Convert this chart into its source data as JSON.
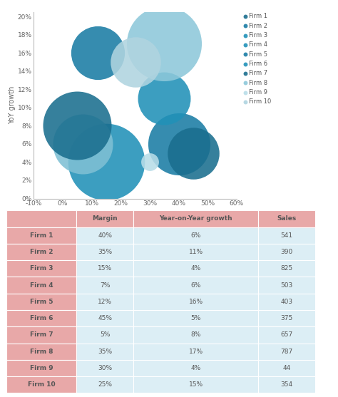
{
  "firms": [
    "Firm 1",
    "Firm 2",
    "Firm 3",
    "Firm 4",
    "Firm 5",
    "Firm 6",
    "Firm 7",
    "Firm 8",
    "Firm 9",
    "Firm 10"
  ],
  "margin": [
    0.4,
    0.35,
    0.15,
    0.07,
    0.12,
    0.45,
    0.05,
    0.35,
    0.3,
    0.25
  ],
  "yoy_growth": [
    0.06,
    0.11,
    0.04,
    0.06,
    0.16,
    0.05,
    0.08,
    0.17,
    0.04,
    0.15
  ],
  "sales": [
    541,
    390,
    825,
    503,
    403,
    375,
    657,
    787,
    44,
    354
  ],
  "colors": [
    "#1a7ca4",
    "#2191b8",
    "#2191b8",
    "#7fc0d4",
    "#1a7ca4",
    "#1a6e8e",
    "#1a6e8e",
    "#8dc8da",
    "#b8dde8",
    "#b0d4e0"
  ],
  "legend_colors": [
    "#1a6e8e",
    "#1a7ca4",
    "#2191b8",
    "#2191b8",
    "#1a7ca4",
    "#2191b8",
    "#1a6e8e",
    "#8dc8da",
    "#b8dde8",
    "#b0d4e0"
  ],
  "margin_pct": [
    "40%",
    "35%",
    "15%",
    "7%",
    "12%",
    "45%",
    "5%",
    "35%",
    "30%",
    "25%"
  ],
  "yoy_pct": [
    "6%",
    "11%",
    "4%",
    "6%",
    "16%",
    "5%",
    "8%",
    "17%",
    "4%",
    "15%"
  ],
  "sales_vals": [
    "541",
    "390",
    "825",
    "503",
    "403",
    "375",
    "657",
    "787",
    "44",
    "354"
  ],
  "xlim": [
    -0.1,
    0.6
  ],
  "ylim": [
    0.0,
    0.205
  ],
  "ylabel": "YoY growth",
  "xticks": [
    -0.1,
    0.0,
    0.1,
    0.2,
    0.3,
    0.4,
    0.5,
    0.6
  ],
  "yticks": [
    0.0,
    0.02,
    0.04,
    0.06,
    0.08,
    0.1,
    0.12,
    0.14,
    0.16,
    0.18,
    0.2
  ],
  "table_header_bg": "#e8a8a8",
  "table_data_bg": "#dceef5",
  "table_row_label_bg": "#e8a8a8",
  "bubble_scale": 6000,
  "bubble_alpha": 0.88
}
